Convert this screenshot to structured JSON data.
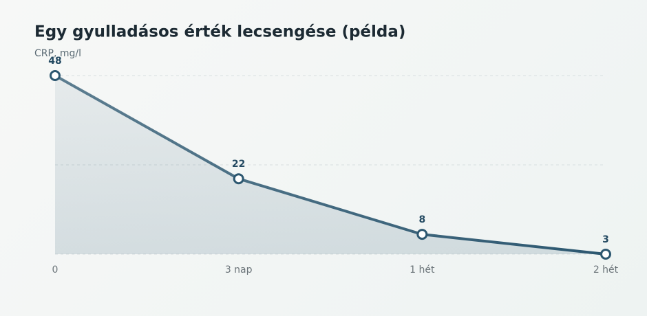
{
  "chart_data": {
    "type": "line",
    "title": "Egy gyulladásos érték lecsengése (példa)",
    "y_label": "CRP, mg/l",
    "categories": [
      "0",
      "3 nap",
      "1 hét",
      "2 hét"
    ],
    "values": [
      48,
      22,
      8,
      3
    ],
    "color": "#2c5770",
    "ylim": [
      3,
      48
    ],
    "yticks": [
      3,
      25.5,
      48
    ],
    "grid": true
  }
}
